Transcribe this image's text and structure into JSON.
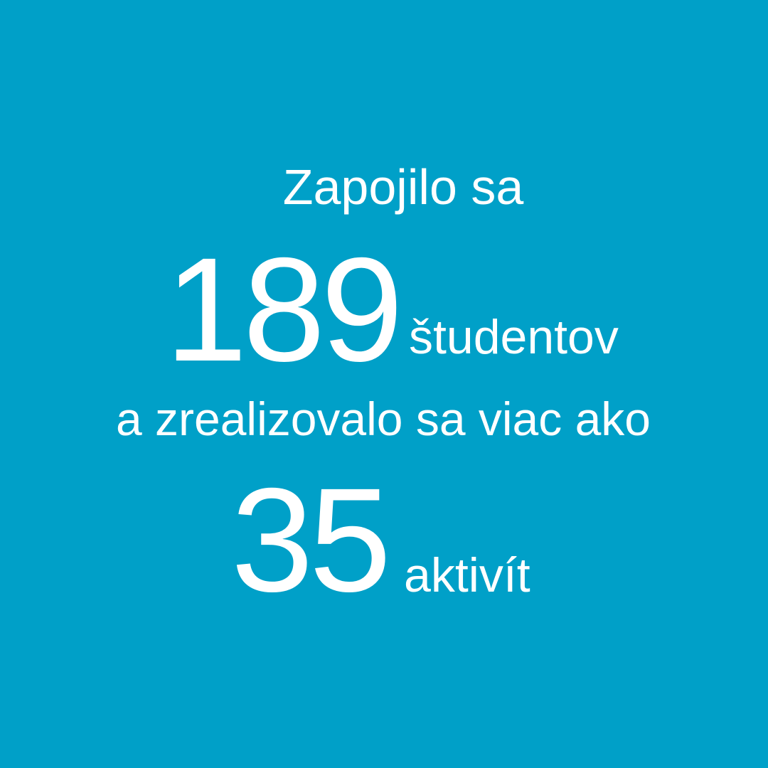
{
  "colors": {
    "background": "#00a0c8",
    "text": "#ffffff"
  },
  "text": {
    "intro": "Zapojilo sa",
    "students_count": "189",
    "students_label": "študentov",
    "middle": "a zrealizovalo sa viac ako",
    "activities_count": "35",
    "activities_label": "aktivít"
  }
}
